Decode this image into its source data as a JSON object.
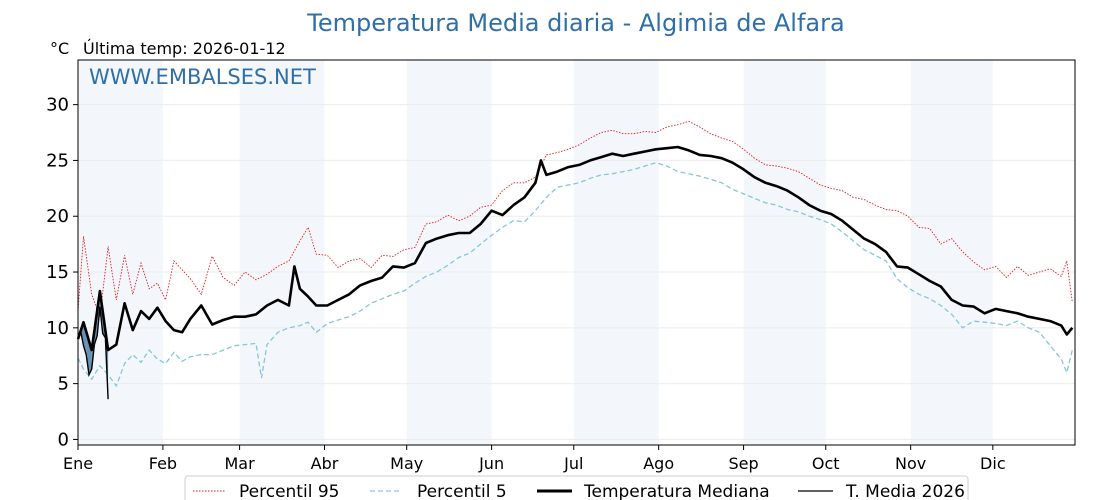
{
  "colors": {
    "title": "#2f6fa8",
    "band": "#f3f7fb",
    "p95": "#e31a1c",
    "p5": "#86c5d9",
    "median": "#000000",
    "current": "#000000",
    "fill_above": "#e7a3a3",
    "fill_below": "#4d7fa8",
    "grid": "#ebebeb"
  },
  "chart_data": {
    "type": "line",
    "title": "Temperatura Media diaria - Algimia de Alfara",
    "unit_label": "°C",
    "last_temp_label": "Última temp: 2026-01-12",
    "watermark": "WWW.EMBALSES.NET",
    "ylim": [
      -0.5,
      34
    ],
    "yticks": [
      "0",
      "5",
      "10",
      "15",
      "20",
      "25",
      "30"
    ],
    "month_labels": [
      "Ene",
      "Feb",
      "Mar",
      "Abr",
      "May",
      "Jun",
      "Jul",
      "Ago",
      "Sep",
      "Oct",
      "Nov",
      "Dic"
    ],
    "grid": true,
    "legend_position": "bottom",
    "series": [
      {
        "name": "Percentil 95",
        "style": "dotted",
        "points": [
          [
            1,
            11.5
          ],
          [
            3,
            18.2
          ],
          [
            6,
            13
          ],
          [
            9,
            11
          ],
          [
            12,
            17.3
          ],
          [
            15,
            12.5
          ],
          [
            18,
            16.5
          ],
          [
            21,
            13
          ],
          [
            24,
            15.8
          ],
          [
            27,
            13.5
          ],
          [
            30,
            14
          ],
          [
            33,
            12.5
          ],
          [
            36,
            16
          ],
          [
            39,
            15.2
          ],
          [
            42,
            14.4
          ],
          [
            46,
            13
          ],
          [
            50,
            16.4
          ],
          [
            54,
            14.5
          ],
          [
            58,
            13.8
          ],
          [
            62,
            15
          ],
          [
            66,
            14.3
          ],
          [
            70,
            14.8
          ],
          [
            74,
            15.5
          ],
          [
            78,
            16
          ],
          [
            82,
            17.8
          ],
          [
            85,
            19
          ],
          [
            88,
            16.6
          ],
          [
            92,
            16.5
          ],
          [
            96,
            15.4
          ],
          [
            100,
            16
          ],
          [
            104,
            16.2
          ],
          [
            108,
            15.4
          ],
          [
            112,
            16.5
          ],
          [
            116,
            16.4
          ],
          [
            120,
            17
          ],
          [
            124,
            17.2
          ],
          [
            128,
            19.3
          ],
          [
            132,
            19.5
          ],
          [
            136,
            20.1
          ],
          [
            140,
            19.6
          ],
          [
            144,
            20
          ],
          [
            148,
            20.8
          ],
          [
            152,
            21
          ],
          [
            156,
            22.3
          ],
          [
            160,
            23
          ],
          [
            164,
            23
          ],
          [
            168,
            23.5
          ],
          [
            172,
            25.5
          ],
          [
            176,
            25.7
          ],
          [
            180,
            26
          ],
          [
            184,
            26.4
          ],
          [
            188,
            27
          ],
          [
            192,
            27.5
          ],
          [
            196,
            27.7
          ],
          [
            200,
            27.4
          ],
          [
            204,
            27.4
          ],
          [
            208,
            27.6
          ],
          [
            212,
            27.5
          ],
          [
            216,
            28
          ],
          [
            220,
            28.2
          ],
          [
            224,
            28.5
          ],
          [
            228,
            28
          ],
          [
            232,
            27.4
          ],
          [
            236,
            27
          ],
          [
            240,
            26.7
          ],
          [
            244,
            26
          ],
          [
            248,
            25.2
          ],
          [
            252,
            24.6
          ],
          [
            256,
            24.5
          ],
          [
            260,
            24.3
          ],
          [
            264,
            24
          ],
          [
            268,
            23.4
          ],
          [
            272,
            22.8
          ],
          [
            276,
            22.5
          ],
          [
            280,
            22.3
          ],
          [
            284,
            21.7
          ],
          [
            288,
            21.5
          ],
          [
            292,
            21
          ],
          [
            296,
            20.6
          ],
          [
            300,
            20.5
          ],
          [
            304,
            20
          ],
          [
            308,
            19
          ],
          [
            312,
            18.9
          ],
          [
            316,
            17.5
          ],
          [
            320,
            18
          ],
          [
            324,
            16.8
          ],
          [
            328,
            15.9
          ],
          [
            332,
            15.2
          ],
          [
            336,
            15.5
          ],
          [
            340,
            14.5
          ],
          [
            344,
            15.5
          ],
          [
            348,
            14.7
          ],
          [
            352,
            15
          ],
          [
            356,
            15.3
          ],
          [
            360,
            14.6
          ],
          [
            362,
            16
          ],
          [
            364,
            12.3
          ]
        ]
      },
      {
        "name": "Percentil 5",
        "style": "dashed",
        "points": [
          [
            1,
            7.3
          ],
          [
            3,
            6.3
          ],
          [
            6,
            5.4
          ],
          [
            9,
            6.6
          ],
          [
            12,
            5.8
          ],
          [
            15,
            4.8
          ],
          [
            18,
            6.8
          ],
          [
            21,
            7.6
          ],
          [
            24,
            6.9
          ],
          [
            27,
            8
          ],
          [
            30,
            7.2
          ],
          [
            33,
            6.8
          ],
          [
            36,
            7.8
          ],
          [
            39,
            7
          ],
          [
            42,
            7.4
          ],
          [
            46,
            7.6
          ],
          [
            50,
            7.6
          ],
          [
            54,
            8
          ],
          [
            58,
            8.4
          ],
          [
            62,
            8.5
          ],
          [
            66,
            8.6
          ],
          [
            68,
            5.5
          ],
          [
            70,
            8.5
          ],
          [
            74,
            9.6
          ],
          [
            78,
            10
          ],
          [
            82,
            10.2
          ],
          [
            85,
            10.5
          ],
          [
            88,
            9.6
          ],
          [
            92,
            10.4
          ],
          [
            96,
            10.7
          ],
          [
            100,
            11
          ],
          [
            104,
            11.5
          ],
          [
            108,
            12.2
          ],
          [
            112,
            12.6
          ],
          [
            116,
            13
          ],
          [
            120,
            13.3
          ],
          [
            124,
            14
          ],
          [
            128,
            14.6
          ],
          [
            132,
            15
          ],
          [
            136,
            15.6
          ],
          [
            140,
            16.3
          ],
          [
            144,
            16.7
          ],
          [
            148,
            17.5
          ],
          [
            152,
            18.3
          ],
          [
            156,
            19
          ],
          [
            160,
            19.6
          ],
          [
            164,
            19.5
          ],
          [
            168,
            20.5
          ],
          [
            172,
            21.7
          ],
          [
            176,
            22.6
          ],
          [
            180,
            22.8
          ],
          [
            184,
            23
          ],
          [
            188,
            23.4
          ],
          [
            192,
            23.7
          ],
          [
            196,
            23.8
          ],
          [
            200,
            24
          ],
          [
            204,
            24.2
          ],
          [
            208,
            24.5
          ],
          [
            212,
            24.8
          ],
          [
            216,
            24.5
          ],
          [
            220,
            24
          ],
          [
            224,
            23.8
          ],
          [
            228,
            23.6
          ],
          [
            232,
            23.3
          ],
          [
            236,
            23
          ],
          [
            240,
            22.4
          ],
          [
            244,
            22
          ],
          [
            248,
            21.6
          ],
          [
            252,
            21.2
          ],
          [
            256,
            21
          ],
          [
            260,
            20.6
          ],
          [
            264,
            20.4
          ],
          [
            268,
            20
          ],
          [
            272,
            19.7
          ],
          [
            276,
            19.3
          ],
          [
            280,
            18.6
          ],
          [
            284,
            17.8
          ],
          [
            288,
            17
          ],
          [
            292,
            16.5
          ],
          [
            296,
            16
          ],
          [
            300,
            14.4
          ],
          [
            304,
            13.6
          ],
          [
            308,
            13
          ],
          [
            312,
            12.6
          ],
          [
            316,
            12
          ],
          [
            320,
            11.2
          ],
          [
            324,
            10
          ],
          [
            328,
            10.6
          ],
          [
            332,
            10.5
          ],
          [
            336,
            10.4
          ],
          [
            340,
            10.2
          ],
          [
            344,
            10.6
          ],
          [
            348,
            10
          ],
          [
            352,
            9.6
          ],
          [
            356,
            8.4
          ],
          [
            360,
            7.2
          ],
          [
            362,
            6
          ],
          [
            364,
            8
          ]
        ]
      },
      {
        "name": "Temperatura Mediana",
        "style": "solid-bold",
        "points": [
          [
            1,
            9
          ],
          [
            3,
            10.5
          ],
          [
            6,
            8
          ],
          [
            9,
            13.3
          ],
          [
            12,
            8
          ],
          [
            15,
            8.5
          ],
          [
            18,
            12.2
          ],
          [
            21,
            9.8
          ],
          [
            24,
            11.5
          ],
          [
            27,
            10.8
          ],
          [
            30,
            11.8
          ],
          [
            33,
            10.6
          ],
          [
            36,
            9.8
          ],
          [
            39,
            9.6
          ],
          [
            42,
            10.8
          ],
          [
            46,
            12
          ],
          [
            50,
            10.3
          ],
          [
            54,
            10.7
          ],
          [
            58,
            11
          ],
          [
            62,
            11
          ],
          [
            66,
            11.2
          ],
          [
            70,
            12
          ],
          [
            74,
            12.5
          ],
          [
            78,
            12
          ],
          [
            80,
            15.5
          ],
          [
            82,
            13.5
          ],
          [
            85,
            12.8
          ],
          [
            88,
            12
          ],
          [
            92,
            12
          ],
          [
            96,
            12.5
          ],
          [
            100,
            13
          ],
          [
            104,
            13.8
          ],
          [
            108,
            14.2
          ],
          [
            112,
            14.5
          ],
          [
            116,
            15.5
          ],
          [
            120,
            15.4
          ],
          [
            124,
            15.8
          ],
          [
            128,
            17.6
          ],
          [
            132,
            18
          ],
          [
            136,
            18.3
          ],
          [
            140,
            18.5
          ],
          [
            144,
            18.5
          ],
          [
            148,
            19.3
          ],
          [
            152,
            20.5
          ],
          [
            156,
            20.1
          ],
          [
            160,
            21
          ],
          [
            164,
            21.7
          ],
          [
            168,
            23
          ],
          [
            170,
            25
          ],
          [
            172,
            23.7
          ],
          [
            176,
            24
          ],
          [
            180,
            24.4
          ],
          [
            184,
            24.6
          ],
          [
            188,
            25
          ],
          [
            192,
            25.3
          ],
          [
            196,
            25.6
          ],
          [
            200,
            25.4
          ],
          [
            204,
            25.6
          ],
          [
            208,
            25.8
          ],
          [
            212,
            26
          ],
          [
            216,
            26.1
          ],
          [
            220,
            26.2
          ],
          [
            224,
            25.9
          ],
          [
            228,
            25.5
          ],
          [
            232,
            25.4
          ],
          [
            236,
            25.2
          ],
          [
            240,
            24.8
          ],
          [
            244,
            24.2
          ],
          [
            248,
            23.5
          ],
          [
            252,
            23
          ],
          [
            256,
            22.7
          ],
          [
            260,
            22.3
          ],
          [
            264,
            21.7
          ],
          [
            268,
            21
          ],
          [
            272,
            20.5
          ],
          [
            276,
            20.2
          ],
          [
            280,
            19.6
          ],
          [
            284,
            18.8
          ],
          [
            288,
            18
          ],
          [
            292,
            17.5
          ],
          [
            296,
            16.8
          ],
          [
            300,
            15.5
          ],
          [
            304,
            15.4
          ],
          [
            308,
            14.8
          ],
          [
            312,
            14.2
          ],
          [
            316,
            13.7
          ],
          [
            320,
            12.5
          ],
          [
            324,
            12
          ],
          [
            328,
            11.9
          ],
          [
            332,
            11.3
          ],
          [
            336,
            11.7
          ],
          [
            340,
            11.5
          ],
          [
            344,
            11.3
          ],
          [
            348,
            11
          ],
          [
            352,
            10.8
          ],
          [
            356,
            10.6
          ],
          [
            360,
            10.2
          ],
          [
            362,
            9.4
          ],
          [
            364,
            10
          ]
        ]
      },
      {
        "name": "T. Media 2026",
        "style": "solid",
        "points": [
          [
            1,
            9.3
          ],
          [
            2,
            9.7
          ],
          [
            3,
            8.4
          ],
          [
            4,
            7.6
          ],
          [
            5,
            5.8
          ],
          [
            6,
            6.3
          ],
          [
            7,
            8.5
          ],
          [
            8,
            9.3
          ],
          [
            9,
            11.9
          ],
          [
            10,
            9.5
          ],
          [
            11,
            9.1
          ],
          [
            12,
            3.6
          ]
        ]
      }
    ]
  }
}
